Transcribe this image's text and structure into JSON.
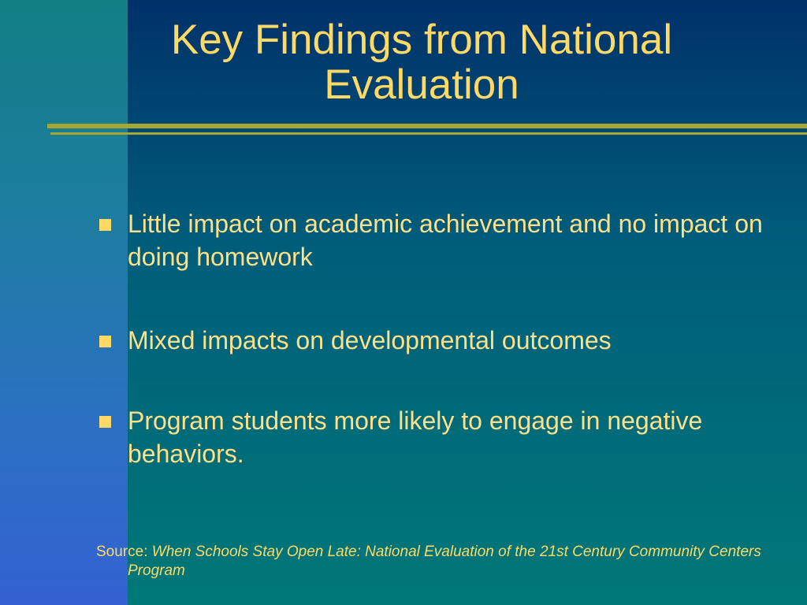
{
  "slide": {
    "title": "Key Findings from National Evaluation",
    "bullets": [
      {
        "text": "Little impact on academic achievement and no impact on doing homework"
      },
      {
        "text": "Mixed impacts on developmental outcomes"
      },
      {
        "text": "Program students more likely to engage in negative behaviors."
      }
    ],
    "source": {
      "label": "Source:",
      "title": "When Schools Stay Open Late: National Evaluation of the 21st Century Community Centers Program"
    }
  },
  "colors": {
    "text": "#ffd966",
    "rule": "#a7a632",
    "background_top": "#00316a",
    "background_bottom": "#007878",
    "panel_bottom": "#3462d2"
  }
}
